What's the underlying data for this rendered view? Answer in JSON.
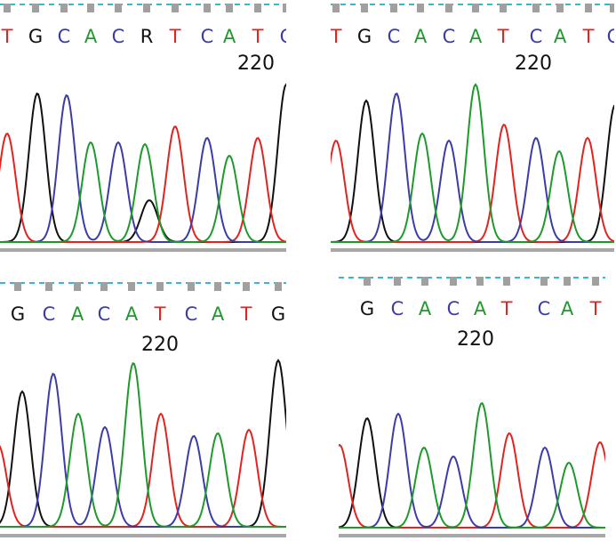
{
  "colors": {
    "A": "#1e9a2c",
    "C": "#3c3ca8",
    "G": "#111111",
    "T": "#e2231f",
    "ticks": "#a0a0a0",
    "dash": "#3ab8c8",
    "bar": "#a8a8a8"
  },
  "chart_data": [
    {
      "type": "line",
      "title": "",
      "position_label": "220",
      "bases": [
        "T",
        "G",
        "C",
        "A",
        "C",
        "R",
        "T",
        "C",
        "A",
        "T",
        "C"
      ],
      "peaks": [
        {
          "base": "T",
          "intensity": 122
        },
        {
          "base": "G",
          "intensity": 167
        },
        {
          "base": "C",
          "intensity": 165
        },
        {
          "base": "A",
          "intensity": 112
        },
        {
          "base": "C",
          "intensity": 112
        },
        {
          "base": "A",
          "intensity": 110
        },
        {
          "base": "G",
          "intensity": 47
        },
        {
          "base": "T",
          "intensity": 130
        },
        {
          "base": "C",
          "intensity": 117
        },
        {
          "base": "A",
          "intensity": 97
        },
        {
          "base": "T",
          "intensity": 117
        },
        {
          "base": "G",
          "intensity": 177
        }
      ]
    },
    {
      "type": "line",
      "title": "",
      "position_label": "220",
      "bases": [
        "T",
        "G",
        "C",
        "A",
        "C",
        "A",
        "T",
        "C",
        "A",
        "T",
        "C"
      ],
      "peaks": [
        {
          "base": "T",
          "intensity": 114
        },
        {
          "base": "G",
          "intensity": 159
        },
        {
          "base": "C",
          "intensity": 167
        },
        {
          "base": "A",
          "intensity": 122
        },
        {
          "base": "C",
          "intensity": 114
        },
        {
          "base": "A",
          "intensity": 177
        },
        {
          "base": "T",
          "intensity": 132
        },
        {
          "base": "C",
          "intensity": 117
        },
        {
          "base": "A",
          "intensity": 102
        },
        {
          "base": "T",
          "intensity": 117
        },
        {
          "base": "G",
          "intensity": 154
        }
      ]
    },
    {
      "type": "line",
      "title": "",
      "position_label": "220",
      "bases": [
        "G",
        "C",
        "A",
        "C",
        "A",
        "T",
        "C",
        "A",
        "T",
        "G"
      ],
      "peaks": [
        {
          "base": "T",
          "intensity": 92
        },
        {
          "base": "G",
          "intensity": 152
        },
        {
          "base": "C",
          "intensity": 172
        },
        {
          "base": "A",
          "intensity": 127
        },
        {
          "base": "C",
          "intensity": 112
        },
        {
          "base": "A",
          "intensity": 184
        },
        {
          "base": "T",
          "intensity": 127
        },
        {
          "base": "C",
          "intensity": 102
        },
        {
          "base": "A",
          "intensity": 105
        },
        {
          "base": "T",
          "intensity": 109
        },
        {
          "base": "G",
          "intensity": 187
        }
      ]
    },
    {
      "type": "line",
      "title": "",
      "position_label": "220",
      "bases": [
        "G",
        "C",
        "A",
        "C",
        "A",
        "T",
        "C",
        "A",
        "T"
      ],
      "peaks": [
        {
          "base": "T",
          "intensity": 93
        },
        {
          "base": "G",
          "intensity": 123
        },
        {
          "base": "C",
          "intensity": 128
        },
        {
          "base": "A",
          "intensity": 90
        },
        {
          "base": "C",
          "intensity": 80
        },
        {
          "base": "A",
          "intensity": 140
        },
        {
          "base": "T",
          "intensity": 106
        },
        {
          "base": "C",
          "intensity": 90
        },
        {
          "base": "A",
          "intensity": 73
        },
        {
          "base": "T",
          "intensity": 96
        }
      ]
    }
  ]
}
